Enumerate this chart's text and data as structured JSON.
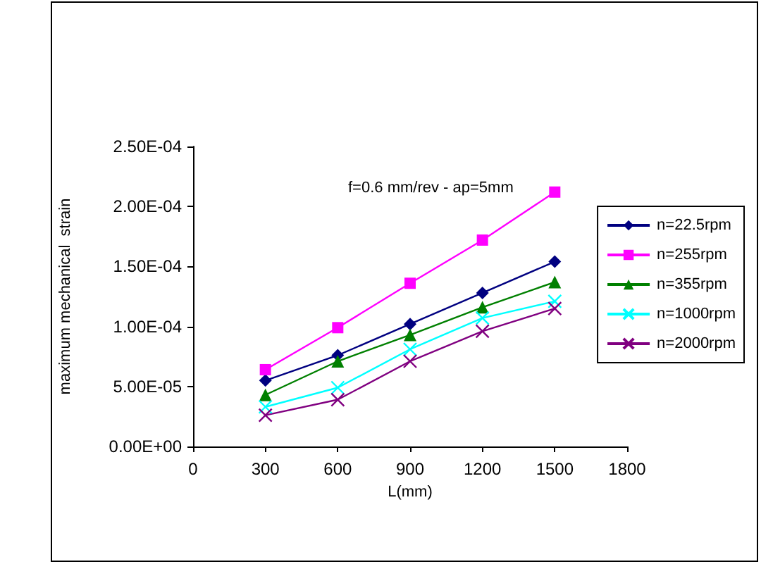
{
  "chart_data": {
    "type": "line",
    "xlabel": "L(mm)",
    "ylabel": "maximum mechanical  strain",
    "annotations": [
      "f=0.6 mm/rev - ap=5mm"
    ],
    "x": [
      300,
      600,
      900,
      1200,
      1500
    ],
    "xlim": [
      0,
      1800
    ],
    "xticks": [
      0,
      300,
      600,
      900,
      1200,
      1500,
      1800
    ],
    "ylim": [
      0,
      0.00025
    ],
    "yticks": [
      {
        "value": 0,
        "label": "0.00E+00"
      },
      {
        "value": 5e-05,
        "label": "5.00E-05"
      },
      {
        "value": 0.0001,
        "label": "1.00E-04"
      },
      {
        "value": 0.00015,
        "label": "1.50E-04"
      },
      {
        "value": 0.0002,
        "label": "2.00E-04"
      },
      {
        "value": 0.00025,
        "label": "2.50E-04"
      }
    ],
    "grid": false,
    "legend": "right",
    "line_style": "solid",
    "series": [
      {
        "name": "n=22.5rpm",
        "color": "#000080",
        "marker": "diamond",
        "values": [
          5.5e-05,
          7.6e-05,
          0.000102,
          0.000128,
          0.000154
        ]
      },
      {
        "name": "n=255rpm",
        "color": "#ff00ff",
        "marker": "square",
        "values": [
          6.4e-05,
          9.9e-05,
          0.000136,
          0.000172,
          0.000212
        ]
      },
      {
        "name": "n=355rpm",
        "color": "#008000",
        "marker": "triangle",
        "values": [
          4.3e-05,
          7.1e-05,
          9.3e-05,
          0.000116,
          0.000137
        ]
      },
      {
        "name": "n=1000rpm",
        "color": "#00ffff",
        "marker": "cross",
        "values": [
          3.3e-05,
          4.9e-05,
          8.1e-05,
          0.000107,
          0.000121
        ]
      },
      {
        "name": "n=2000rpm",
        "color": "#800080",
        "marker": "cross",
        "values": [
          2.6e-05,
          3.9e-05,
          7.1e-05,
          9.6e-05,
          0.000115
        ]
      }
    ]
  }
}
